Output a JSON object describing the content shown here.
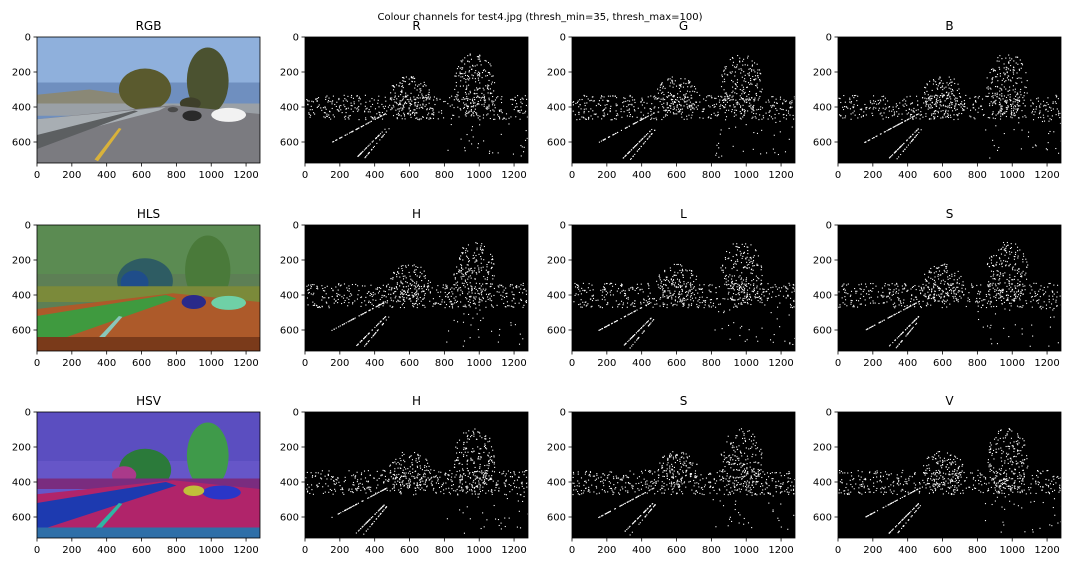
{
  "figure": {
    "suptitle": "Colour channels for test4.jpg (thresh_min=35, thresh_max=100)"
  },
  "chart_data": {
    "type": "image-grid",
    "rows": 3,
    "cols": 4,
    "image_width": 1280,
    "image_height": 720,
    "xlim": [
      0,
      1280
    ],
    "ylim": [
      720,
      0
    ],
    "xticks": [
      0,
      200,
      400,
      600,
      800,
      1000,
      1200
    ],
    "yticks": [
      0,
      200,
      400,
      600
    ],
    "xtick_labels": [
      "0",
      "200",
      "400",
      "600",
      "800",
      "1000",
      "1200"
    ],
    "ytick_labels": [
      "0",
      "200",
      "400",
      "600"
    ],
    "panels": [
      {
        "title": "RGB",
        "kind": "rgb"
      },
      {
        "title": "R",
        "kind": "binary"
      },
      {
        "title": "G",
        "kind": "binary"
      },
      {
        "title": "B",
        "kind": "binary"
      },
      {
        "title": "HLS",
        "kind": "hls"
      },
      {
        "title": "H",
        "kind": "binary"
      },
      {
        "title": "L",
        "kind": "binary"
      },
      {
        "title": "S",
        "kind": "binary"
      },
      {
        "title": "HSV",
        "kind": "hsv"
      },
      {
        "title": "H",
        "kind": "binary"
      },
      {
        "title": "S",
        "kind": "binary"
      },
      {
        "title": "V",
        "kind": "binary"
      }
    ]
  },
  "colors": {
    "binary_background": "#000000",
    "binary_edges": "#ffffff",
    "sky": "#6f8fbf",
    "road": "#7b7b80",
    "hls_background": "#5d7f55",
    "hsv_background": "#6656c8"
  }
}
